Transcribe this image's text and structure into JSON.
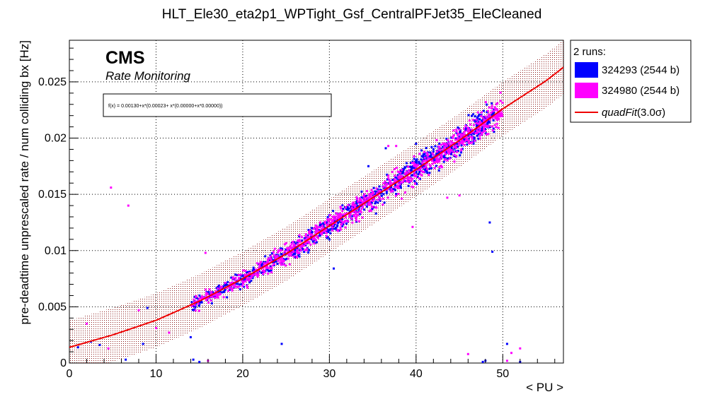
{
  "chart_data": {
    "type": "scatter",
    "title": "HLT_Ele30_eta2p1_WPTight_Gsf_CentralPFJet35_EleCleaned",
    "xlabel": "< PU >",
    "ylabel": "pre-deadtime unprescaled rate / num colliding bx [Hz]",
    "xlim": [
      0,
      57
    ],
    "ylim": [
      0,
      0.0287
    ],
    "xticks": [
      "0",
      "10",
      "20",
      "30",
      "40",
      "50"
    ],
    "yticks": [
      "0",
      "0.005",
      "0.01",
      "0.015",
      "0.02",
      "0.025"
    ],
    "grid": true,
    "logo": "CMS",
    "logo_subtitle": "Rate Monitoring",
    "fit_formula": "f(x) = 0.00130+x*(0.00023+ x*(0.00000+x*0.00000))",
    "fit_curve": {
      "x": [
        0,
        5,
        10,
        15,
        20,
        25,
        30,
        35,
        40,
        45,
        50,
        55,
        57
      ],
      "y": [
        0.0014,
        0.0025,
        0.0038,
        0.0055,
        0.0075,
        0.0097,
        0.0122,
        0.0147,
        0.0172,
        0.0198,
        0.0226,
        0.0251,
        0.0263
      ]
    },
    "band_halfwidth": 0.0024,
    "legend": {
      "header": "2 runs:",
      "placement": "outside-right-top",
      "fit_label_main": "quadFit",
      "fit_label_suffix": "(3.0σ)"
    },
    "series": [
      {
        "name": "324293 (2544 b)",
        "color": "#0000ff",
        "main_range": [
          14,
          49
        ],
        "outliers": {
          "x": [
            14.0,
            14.3,
            15.0,
            3.5,
            8.5,
            24.5,
            30.5,
            34.5,
            36.5,
            40.0,
            48.5,
            48.8,
            47.7,
            48.0,
            50.5,
            52.0,
            1.0,
            2.5,
            6.5,
            9.0,
            42.0
          ],
          "y": [
            0.0023,
            0.0003,
            0.0001,
            0.0016,
            0.0017,
            0.0017,
            0.0084,
            0.0175,
            0.0191,
            0.0195,
            0.0125,
            0.0099,
            0.0001,
            0.0002,
            0.0017,
            0.0001,
            0.0014,
            0.0019,
            0.0003,
            0.0049,
            0.0188
          ]
        }
      },
      {
        "name": "324980 (2544 b)",
        "color": "#ff00ff",
        "main_range": [
          14,
          50
        ],
        "outliers": {
          "x": [
            4.8,
            6.8,
            15.7,
            36.8,
            37.7,
            39.6,
            43.6,
            45.0,
            51.0,
            52.0,
            2.0,
            4.5,
            8.0,
            10.0,
            11.5,
            16.0,
            46.0,
            50.5
          ],
          "y": [
            0.0156,
            0.014,
            0.0098,
            0.0193,
            0.0193,
            0.0121,
            0.0147,
            0.0149,
            0.0009,
            0.0013,
            0.0035,
            0.0013,
            0.0047,
            0.0031,
            0.0027,
            0.0002,
            0.0008,
            0.0002
          ]
        }
      }
    ]
  }
}
